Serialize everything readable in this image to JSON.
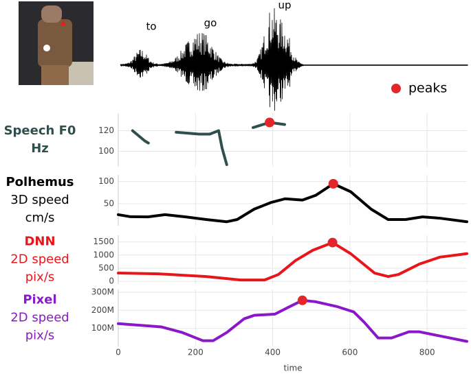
{
  "words": [
    "to",
    "go",
    "up"
  ],
  "legend": {
    "label": "peaks",
    "color": "#e2262a"
  },
  "xlim": [
    0,
    903
  ],
  "xticks": [
    0,
    200,
    400,
    600,
    800
  ],
  "xlabel": "time",
  "panels": [
    {
      "type": "line",
      "labels": [
        "Speech F0",
        "Hz"
      ],
      "label_color": "#2f4f4c",
      "color": "#2f4f4c",
      "ylim": [
        85,
        137
      ],
      "yticks": [
        100,
        120
      ],
      "x": [
        37,
        69,
        78,
        null,
        150,
        210,
        237,
        260,
        269,
        281,
        null,
        349,
        392,
        431
      ],
      "values": [
        120,
        110,
        108,
        null,
        118.5,
        116.7,
        116.7,
        120,
        103,
        87,
        null,
        123,
        128,
        126
      ],
      "peak": {
        "x": 392,
        "y": 128
      }
    },
    {
      "type": "line",
      "labels": [
        "Polhemus",
        "3D speed",
        "cm/s"
      ],
      "label_color": "#000000",
      "color": "#000000",
      "ylim": [
        0,
        115
      ],
      "yticks": [
        50,
        100
      ],
      "x": [
        0,
        32,
        77,
        121,
        174,
        228,
        281,
        308,
        352,
        397,
        432,
        477,
        512,
        557,
        602,
        655,
        699,
        744,
        788,
        833,
        903
      ],
      "values": [
        25,
        20.3,
        20,
        25,
        20,
        14,
        9,
        14,
        37.5,
        53,
        61,
        58,
        69,
        95,
        77,
        37.5,
        14,
        14,
        20,
        17,
        9
      ],
      "peak": {
        "x": 557,
        "y": 95
      }
    },
    {
      "type": "line",
      "labels": [
        "DNN",
        "2D speed",
        "pix/s"
      ],
      "label_color": "#e8161b",
      "color": "#e8161b",
      "ylim": [
        -100,
        1750
      ],
      "yticks": [
        0,
        500,
        1000,
        1500
      ],
      "x": [
        0,
        103,
        228,
        317,
        379,
        415,
        459,
        504,
        555,
        602,
        664,
        699,
        726,
        780,
        833,
        903
      ],
      "values": [
        316,
        289,
        184,
        53,
        53,
        263,
        790,
        1184,
        1474,
        1053,
        316,
        184,
        263,
        658,
        921,
        1053
      ],
      "peak": {
        "x": 555,
        "y": 1474
      }
    },
    {
      "type": "line",
      "labels": [
        "Pixel",
        "2D speed",
        "pix/s"
      ],
      "label_color": "#8a18c9",
      "color": "#8a18c9",
      "ylim": [
        0,
        315000000
      ],
      "yticks": [
        {
          "value": 100000000,
          "label": "100M"
        },
        {
          "value": 200000000,
          "label": "200M"
        },
        {
          "value": 300000000,
          "label": "300M"
        }
      ],
      "x": [
        0,
        112,
        166,
        219,
        246,
        281,
        326,
        352,
        406,
        441,
        477,
        512,
        566,
        610,
        637,
        673,
        708,
        753,
        780,
        833,
        903
      ],
      "values": [
        126000000,
        108000000,
        77000000,
        32000000,
        32000000,
        77000000,
        153000000,
        172000000,
        179000000,
        217000000,
        255000000,
        247000000,
        221000000,
        191000000,
        134000000,
        47000000,
        47000000,
        81000000,
        81000000,
        58000000,
        28000000
      ],
      "peak": {
        "x": 477,
        "y": 255000000
      }
    }
  ]
}
